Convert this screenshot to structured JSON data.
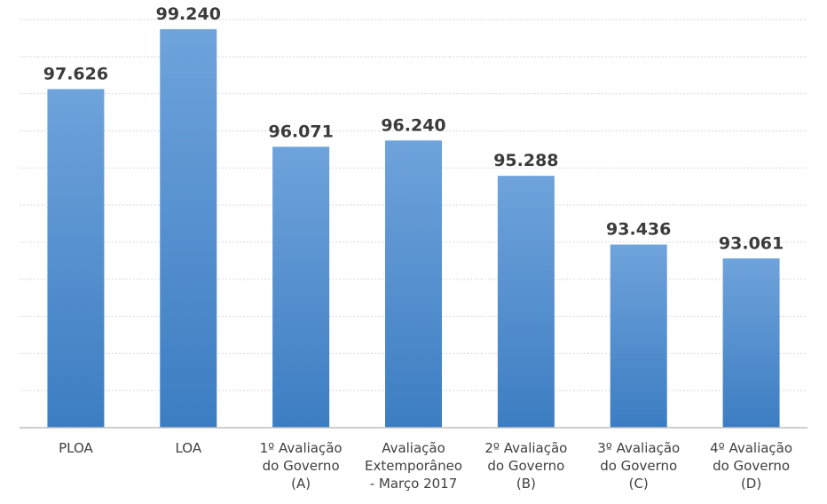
{
  "chart_data": {
    "type": "bar",
    "categories": [
      [
        "PLOA"
      ],
      [
        "LOA"
      ],
      [
        "1º Avaliação",
        "do Governo",
        "(A)"
      ],
      [
        "Avaliação",
        "Extemporâneo",
        "- Março 2017"
      ],
      [
        "2º Avaliação",
        "do Governo",
        "(B)"
      ],
      [
        "3º Avaliação",
        "do Governo",
        "(C)"
      ],
      [
        "4º Avaliação",
        "do Governo",
        "(D)"
      ]
    ],
    "values": [
      97626,
      99240,
      96071,
      96240,
      95288,
      93436,
      93061
    ],
    "value_labels": [
      "97.626",
      "99.240",
      "96.071",
      "96.240",
      "95.288",
      "93.436",
      "93.061"
    ],
    "title": "",
    "xlabel": "",
    "ylabel": "",
    "ylim": [
      88500,
      99500
    ],
    "y_gridlines": 11,
    "grid": true,
    "legend": "none",
    "bar_color_top": "#6fa3db",
    "bar_color_bottom": "#3c7dc2"
  }
}
